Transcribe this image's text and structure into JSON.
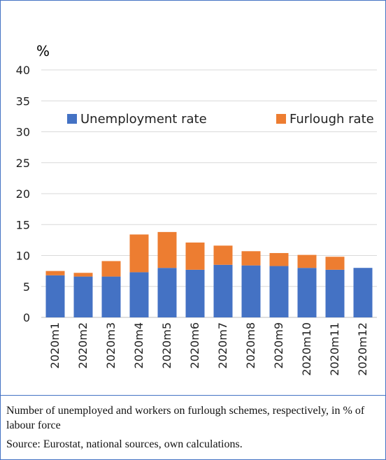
{
  "chart_data": {
    "type": "bar",
    "stacked": true,
    "ylabel": "%",
    "ylim": [
      0,
      40
    ],
    "yticks": [
      0,
      5,
      10,
      15,
      20,
      25,
      30,
      35,
      40
    ],
    "grid": true,
    "legend_position": "top",
    "categories": [
      "2020m1",
      "2020m2",
      "2020m3",
      "2020m4",
      "2020m5",
      "2020m6",
      "2020m7",
      "2020m8",
      "2020m9",
      "2020m10",
      "2020m11",
      "2020m12"
    ],
    "series": [
      {
        "name": "Unemployment rate",
        "color": "#4472c4",
        "values": [
          6.8,
          6.6,
          6.6,
          7.3,
          8.0,
          7.7,
          8.5,
          8.4,
          8.3,
          8.0,
          7.7,
          8.0
        ]
      },
      {
        "name": "Furlough rate",
        "color": "#ed7d31",
        "values": [
          0.7,
          0.6,
          2.5,
          6.1,
          5.8,
          4.4,
          3.1,
          2.3,
          2.1,
          2.1,
          2.1,
          0
        ]
      }
    ]
  },
  "caption": {
    "note": "Number of unemployed and workers on furlough schemes, respectively, in % of labour force",
    "source": "Source: Eurostat, national sources, own calculations."
  }
}
